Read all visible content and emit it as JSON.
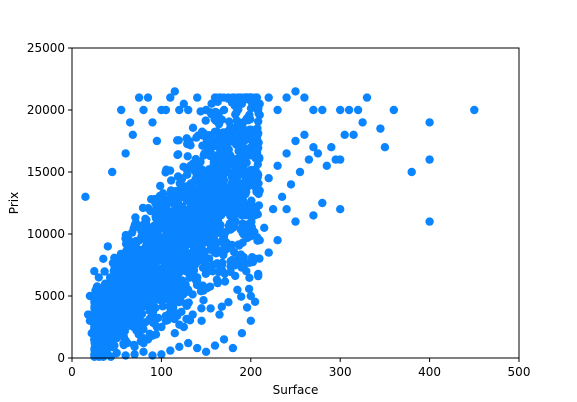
{
  "chart_data": {
    "type": "scatter",
    "title": "",
    "xlabel": "Surface",
    "ylabel": "Prix",
    "xlim": [
      0,
      500
    ],
    "ylim": [
      0,
      25000
    ],
    "xticks": [
      0,
      100,
      200,
      300,
      400,
      500
    ],
    "yticks": [
      0,
      5000,
      10000,
      15000,
      20000,
      25000
    ],
    "grid": false,
    "legend": "none",
    "marker_color": "#0a84ff",
    "series": [
      {
        "points": [
          [
            15,
            13000
          ],
          [
            20,
            5000
          ],
          [
            18,
            3500
          ],
          [
            25,
            7000
          ],
          [
            28,
            5500
          ],
          [
            30,
            6500
          ],
          [
            22,
            2000
          ],
          [
            35,
            8000
          ],
          [
            40,
            9000
          ],
          [
            45,
            15000
          ],
          [
            55,
            20000
          ],
          [
            60,
            16500
          ],
          [
            65,
            19000
          ],
          [
            68,
            18000
          ],
          [
            75,
            21000
          ],
          [
            80,
            20000
          ],
          [
            85,
            21000
          ],
          [
            90,
            19000
          ],
          [
            95,
            17500
          ],
          [
            100,
            20000
          ],
          [
            105,
            20000
          ],
          [
            110,
            21000
          ],
          [
            115,
            21500
          ],
          [
            120,
            20000
          ],
          [
            125,
            20500
          ],
          [
            130,
            20000
          ],
          [
            140,
            21000
          ],
          [
            150,
            20000
          ],
          [
            160,
            21000
          ],
          [
            170,
            20000
          ],
          [
            180,
            21000
          ],
          [
            190,
            20500
          ],
          [
            200,
            21000
          ],
          [
            210,
            20500
          ],
          [
            220,
            21000
          ],
          [
            230,
            20000
          ],
          [
            240,
            21000
          ],
          [
            250,
            21500
          ],
          [
            260,
            21000
          ],
          [
            270,
            20000
          ],
          [
            280,
            20000
          ],
          [
            300,
            20000
          ],
          [
            305,
            18000
          ],
          [
            310,
            20000
          ],
          [
            315,
            18000
          ],
          [
            320,
            20000
          ],
          [
            325,
            19000
          ],
          [
            330,
            21000
          ],
          [
            345,
            18500
          ],
          [
            350,
            17000
          ],
          [
            360,
            20000
          ],
          [
            380,
            15000
          ],
          [
            400,
            19000
          ],
          [
            400,
            16000
          ],
          [
            400,
            11000
          ],
          [
            450,
            20000
          ],
          [
            300,
            16000
          ],
          [
            300,
            12000
          ],
          [
            280,
            12500
          ],
          [
            270,
            11500
          ],
          [
            250,
            11000
          ],
          [
            240,
            12000
          ],
          [
            230,
            9500
          ],
          [
            220,
            8500
          ],
          [
            200,
            5000
          ],
          [
            200,
            3000
          ],
          [
            190,
            2000
          ],
          [
            180,
            800
          ],
          [
            170,
            1500
          ],
          [
            160,
            1000
          ],
          [
            150,
            500
          ],
          [
            140,
            800
          ],
          [
            130,
            1200
          ],
          [
            120,
            900
          ],
          [
            110,
            600
          ],
          [
            100,
            300
          ],
          [
            90,
            200
          ],
          [
            80,
            500
          ],
          [
            70,
            300
          ],
          [
            60,
            200
          ],
          [
            50,
            400
          ],
          [
            40,
            300
          ],
          [
            35,
            100
          ],
          [
            30,
            800
          ],
          [
            25,
            1500
          ],
          [
            20,
            3000
          ],
          [
            45,
            2000
          ],
          [
            55,
            2500
          ],
          [
            65,
            3000
          ],
          [
            75,
            2000
          ],
          [
            85,
            1500
          ],
          [
            95,
            2500
          ],
          [
            105,
            3000
          ],
          [
            115,
            2000
          ],
          [
            125,
            2500
          ],
          [
            135,
            3500
          ],
          [
            145,
            3000
          ],
          [
            155,
            4000
          ],
          [
            165,
            3500
          ],
          [
            175,
            4500
          ],
          [
            185,
            5500
          ],
          [
            195,
            7000
          ],
          [
            205,
            8000
          ],
          [
            210,
            9500
          ],
          [
            215,
            10500
          ],
          [
            225,
            12000
          ],
          [
            235,
            13000
          ],
          [
            245,
            14000
          ],
          [
            255,
            15000
          ],
          [
            265,
            16000
          ],
          [
            270,
            17000
          ],
          [
            275,
            16500
          ],
          [
            285,
            15500
          ],
          [
            290,
            17000
          ],
          [
            295,
            16000
          ],
          [
            260,
            18000
          ],
          [
            250,
            17500
          ],
          [
            240,
            16500
          ],
          [
            230,
            15500
          ],
          [
            220,
            14500
          ],
          [
            210,
            13500
          ],
          [
            200,
            12500
          ],
          [
            190,
            11500
          ],
          [
            180,
            10500
          ],
          [
            170,
            9500
          ],
          [
            160,
            8500
          ],
          [
            150,
            7500
          ],
          [
            140,
            6500
          ],
          [
            130,
            5500
          ],
          [
            120,
            4500
          ],
          [
            110,
            3500
          ],
          [
            100,
            2500
          ],
          [
            90,
            1800
          ],
          [
            80,
            1200
          ],
          [
            70,
            900
          ],
          [
            60,
            1400
          ],
          [
            50,
            1600
          ],
          [
            40,
            2200
          ]
        ]
      }
    ]
  }
}
